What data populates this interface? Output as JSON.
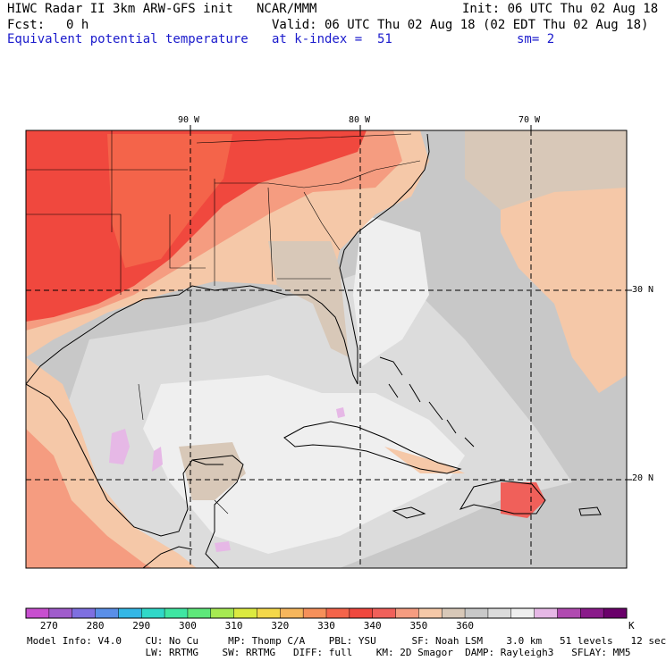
{
  "header": {
    "model": "HIWC Radar II 3km ARW-GFS init",
    "org": "NCAR/MMM",
    "init": "Init: 06 UTC Thu 02 Aug 18",
    "fcst_label": "Fcst:",
    "fcst_value": "0 h",
    "valid": "Valid: 06 UTC Thu 02 Aug 18 (02 EDT Thu 02 Aug 18)",
    "field": "Equivalent potential temperature",
    "level": "at k-index =  51",
    "smooth": "sm= 2"
  },
  "map": {
    "lon_labels": [
      "90 W",
      "80 W",
      "70 W"
    ],
    "lat_labels": [
      "30 N",
      "20 N"
    ]
  },
  "colorbar": {
    "colors": [
      "#c84fd0",
      "#a05ccc",
      "#7e6fe0",
      "#5a8fe8",
      "#34b7e6",
      "#30d8c8",
      "#3fe6a2",
      "#5ee87a",
      "#a6ea52",
      "#dcea40",
      "#f4d84a",
      "#f6b65c",
      "#f6905a",
      "#f4644a",
      "#f0483e",
      "#f0605a",
      "#f59c80",
      "#f5c8a8",
      "#d8c8b8",
      "#c8c8c8",
      "#dcdcdc",
      "#efefef",
      "#e6b8e6",
      "#b04ab0",
      "#8a1a8a",
      "#6a006a"
    ],
    "labels": [
      "270",
      "280",
      "290",
      "300",
      "310",
      "320",
      "330",
      "340",
      "350",
      "360"
    ],
    "unit": "K"
  },
  "footer": {
    "line1": "Model Info: V4.0    CU: No Cu     MP: Thomp C/A    PBL: YSU      SF: Noah LSM    3.0 km   51 levels   12 sec",
    "line2": "                    LW: RRTMG    SW: RRTMG   DIFF: full    KM: 2D Smagor  DAMP: Rayleigh3   SFLAY: MM5"
  }
}
